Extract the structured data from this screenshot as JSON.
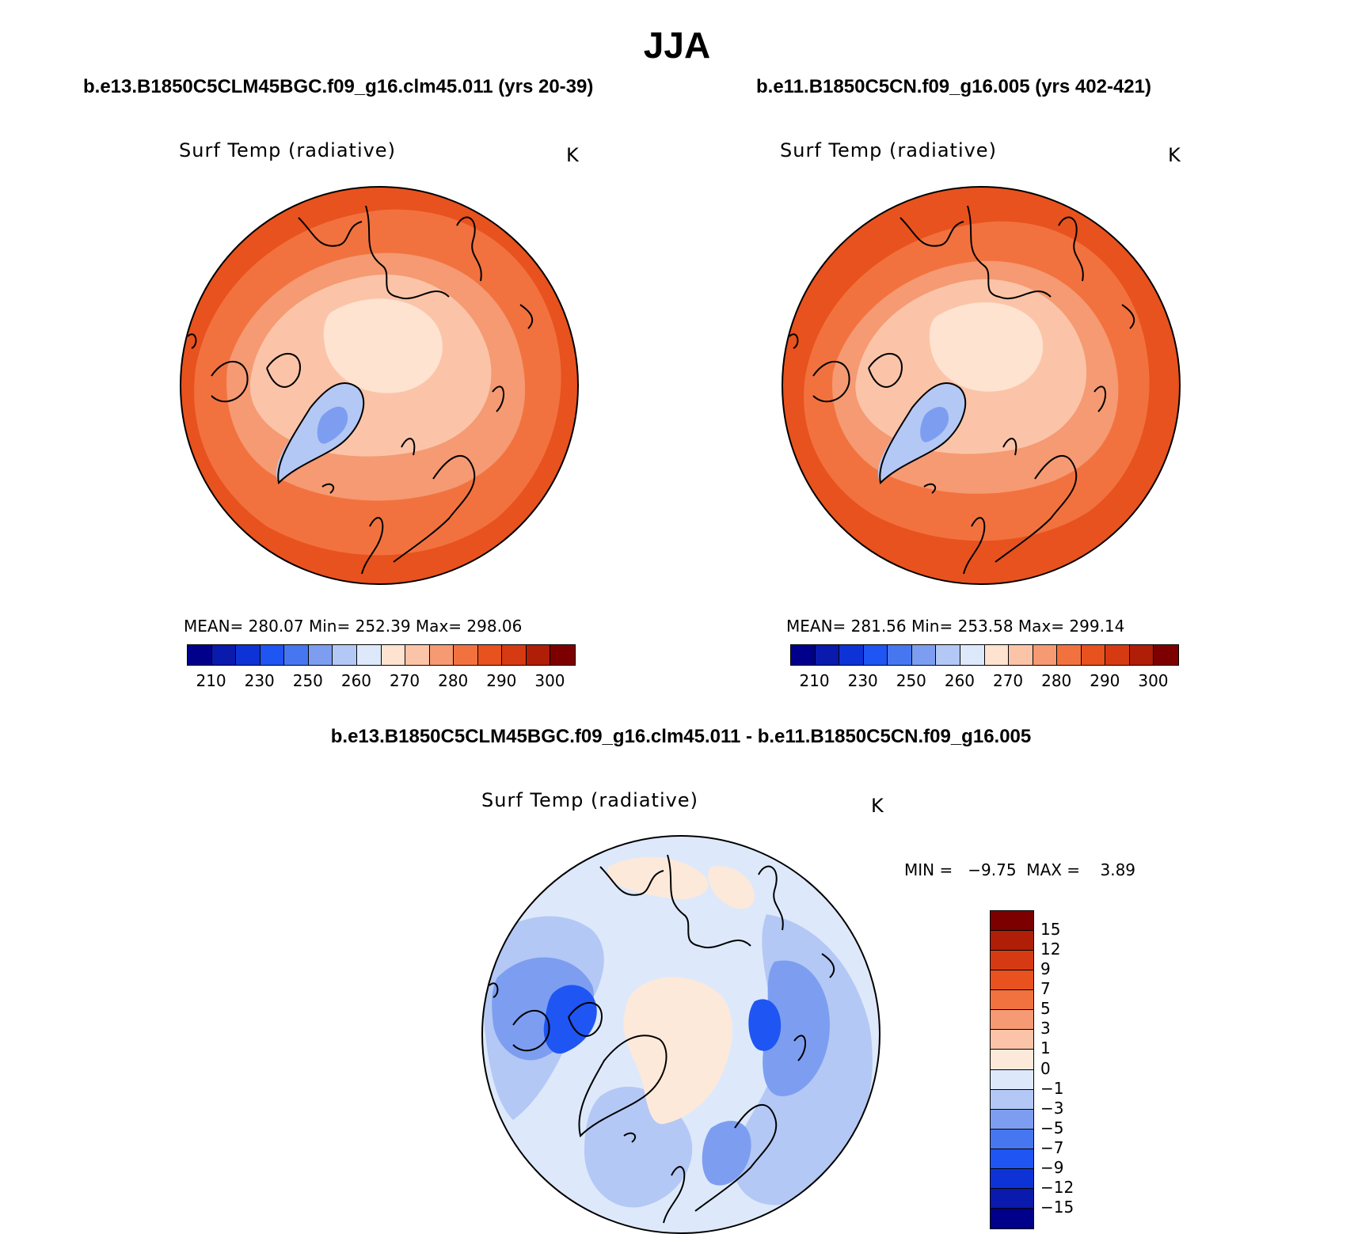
{
  "title": "JJA",
  "panels": [
    {
      "case_title": "b.e13.B1850C5CLM45BGC.f09_g16.clm45.011 (yrs 20-39)",
      "variable": "Surf Temp (radiative)",
      "units": "K",
      "stats": "MEAN= 280.07   Min= 252.39   Max= 298.06"
    },
    {
      "case_title": "b.e11.B1850C5CN.f09_g16.005 (yrs 402-421)",
      "variable": "Surf Temp (radiative)",
      "units": "K",
      "stats": "MEAN= 281.56   Min= 253.58   Max= 299.14"
    }
  ],
  "diff_panel": {
    "case_title": "b.e13.B1850C5CLM45BGC.f09_g16.clm45.011 - b.e11.B1850C5CN.f09_g16.005",
    "variable": "Surf Temp (radiative)",
    "units": "K",
    "stats": "MIN =   −9.75  MAX =    3.89"
  },
  "colorbar_abs": {
    "labels": [
      "210",
      "230",
      "250",
      "260",
      "270",
      "280",
      "290",
      "300"
    ],
    "colors": [
      "#00008b",
      "#0a1aad",
      "#0d33d6",
      "#1f55f2",
      "#4677f0",
      "#7d9ef0",
      "#b4c8f5",
      "#dde9fb",
      "#fde3d0",
      "#fbc4a8",
      "#f59a72",
      "#f2723f",
      "#e8521e",
      "#d63a12",
      "#b01e08",
      "#7d0000"
    ]
  },
  "colorbar_diff": {
    "labels": [
      "15",
      "12",
      "9",
      "7",
      "5",
      "3",
      "1",
      "0",
      "−1",
      "−3",
      "−5",
      "−7",
      "−9",
      "−12",
      "−15"
    ],
    "colors": [
      "#7d0000",
      "#b01e08",
      "#d63a12",
      "#e8521e",
      "#f2723f",
      "#f59a72",
      "#fbc4a8",
      "#fde9da",
      "#dde9fb",
      "#b4c8f5",
      "#7d9ef0",
      "#4677f0",
      "#1f55f2",
      "#0d33d6",
      "#0a1aad",
      "#00008b"
    ]
  },
  "map_colors": {
    "warm_outer": "#e8521e",
    "warm_mid": "#f2723f",
    "warm_light": "#f59a72",
    "pale": "#fbc4a8",
    "palest": "#fde3d0",
    "greenland_cold": "#b4c8f5",
    "greenland_core": "#7d9ef0",
    "diff_base": "#dde9fb",
    "diff_neutral": "#fde9da",
    "diff_cool": "#b4c8f5",
    "diff_cooler": "#7d9ef0",
    "diff_coldest": "#1f55f2"
  }
}
